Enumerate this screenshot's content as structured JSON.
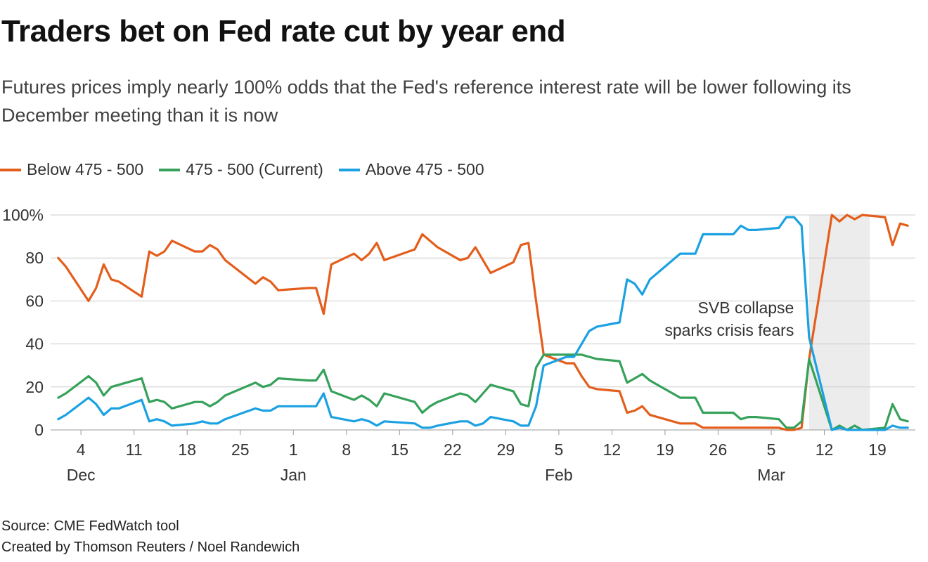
{
  "title": "Traders bet on Fed rate cut by year end",
  "subtitle": "Futures prices imply nearly 100% odds that the Fed's reference interest rate will be lower following its December meeting than it is now",
  "source": "Source: CME FedWatch tool",
  "credit": "Created by Thomson Reuters / Noel Randewich",
  "colors": {
    "below": "#e35e1c",
    "current": "#36a15a",
    "above": "#1ba1e2",
    "grid": "#cccccc",
    "shade": "#ececec"
  },
  "chart_data": {
    "type": "line",
    "ylim": [
      0,
      100
    ],
    "yticks": [
      {
        "value": 0,
        "label": "0"
      },
      {
        "value": 20,
        "label": "20"
      },
      {
        "value": 40,
        "label": "40"
      },
      {
        "value": 60,
        "label": "60"
      },
      {
        "value": 80,
        "label": "80"
      },
      {
        "value": 100,
        "label": "100%"
      }
    ],
    "xlim": [
      "2022-11-30",
      "2023-03-24"
    ],
    "xticks": [
      {
        "date": "2022-12-04",
        "label": "4",
        "sublabel": "Dec"
      },
      {
        "date": "2022-12-11",
        "label": "11",
        "sublabel": ""
      },
      {
        "date": "2022-12-18",
        "label": "18",
        "sublabel": ""
      },
      {
        "date": "2022-12-25",
        "label": "25",
        "sublabel": ""
      },
      {
        "date": "2023-01-01",
        "label": "1",
        "sublabel": "Jan"
      },
      {
        "date": "2023-01-08",
        "label": "8",
        "sublabel": ""
      },
      {
        "date": "2023-01-15",
        "label": "15",
        "sublabel": ""
      },
      {
        "date": "2023-01-22",
        "label": "22",
        "sublabel": ""
      },
      {
        "date": "2023-01-29",
        "label": "29",
        "sublabel": ""
      },
      {
        "date": "2023-02-05",
        "label": "5",
        "sublabel": "Feb"
      },
      {
        "date": "2023-02-12",
        "label": "12",
        "sublabel": ""
      },
      {
        "date": "2023-02-19",
        "label": "19",
        "sublabel": ""
      },
      {
        "date": "2023-02-26",
        "label": "26",
        "sublabel": ""
      },
      {
        "date": "2023-03-05",
        "label": "5",
        "sublabel": "Mar"
      },
      {
        "date": "2023-03-12",
        "label": "12",
        "sublabel": ""
      },
      {
        "date": "2023-03-19",
        "label": "19",
        "sublabel": ""
      }
    ],
    "shaded_region": [
      "2023-03-10",
      "2023-03-18"
    ],
    "annotation": {
      "date": "2023-03-08",
      "value": 55,
      "lines": [
        "SVB collapse",
        "sparks crisis fears"
      ]
    },
    "x": [
      "2022-12-01",
      "2022-12-02",
      "2022-12-05",
      "2022-12-06",
      "2022-12-07",
      "2022-12-08",
      "2022-12-09",
      "2022-12-12",
      "2022-12-13",
      "2022-12-14",
      "2022-12-15",
      "2022-12-16",
      "2022-12-19",
      "2022-12-20",
      "2022-12-21",
      "2022-12-22",
      "2022-12-23",
      "2022-12-27",
      "2022-12-28",
      "2022-12-29",
      "2022-12-30",
      "2023-01-03",
      "2023-01-04",
      "2023-01-05",
      "2023-01-06",
      "2023-01-09",
      "2023-01-10",
      "2023-01-11",
      "2023-01-12",
      "2023-01-13",
      "2023-01-17",
      "2023-01-18",
      "2023-01-19",
      "2023-01-20",
      "2023-01-23",
      "2023-01-24",
      "2023-01-25",
      "2023-01-26",
      "2023-01-27",
      "2023-01-30",
      "2023-01-31",
      "2023-02-01",
      "2023-02-02",
      "2023-02-03",
      "2023-02-06",
      "2023-02-07",
      "2023-02-08",
      "2023-02-09",
      "2023-02-10",
      "2023-02-13",
      "2023-02-14",
      "2023-02-15",
      "2023-02-16",
      "2023-02-17",
      "2023-02-21",
      "2023-02-22",
      "2023-02-23",
      "2023-02-24",
      "2023-02-27",
      "2023-02-28",
      "2023-03-01",
      "2023-03-02",
      "2023-03-03",
      "2023-03-06",
      "2023-03-07",
      "2023-03-08",
      "2023-03-09",
      "2023-03-10",
      "2023-03-13",
      "2023-03-14",
      "2023-03-15",
      "2023-03-16",
      "2023-03-17",
      "2023-03-20",
      "2023-03-21",
      "2023-03-22",
      "2023-03-23"
    ],
    "series": [
      {
        "name": "Below 475 - 500",
        "key": "below",
        "values": [
          80,
          76,
          60,
          66,
          77,
          70,
          69,
          62,
          83,
          81,
          83,
          88,
          83,
          83,
          86,
          84,
          79,
          68,
          71,
          69,
          65,
          66,
          66,
          54,
          77,
          82,
          79,
          82,
          87,
          79,
          84,
          91,
          88,
          85,
          79,
          80,
          85,
          79,
          73,
          78,
          86,
          87,
          60,
          35,
          31,
          31,
          25,
          20,
          19,
          18,
          8,
          9,
          11,
          7,
          3,
          3,
          3,
          1,
          1,
          1,
          1,
          1,
          1,
          1,
          0,
          0,
          1,
          33,
          100,
          97,
          100,
          98,
          100,
          99,
          86,
          96,
          95
        ],
        "_note": ""
      },
      {
        "name": "475 - 500 (Current)",
        "key": "current",
        "values": [
          15,
          17,
          25,
          22,
          16,
          20,
          21,
          24,
          13,
          14,
          13,
          10,
          13,
          13,
          11,
          13,
          16,
          22,
          20,
          21,
          24,
          23,
          23,
          28,
          18,
          14,
          16,
          14,
          11,
          17,
          13,
          8,
          11,
          13,
          17,
          16,
          13,
          17,
          21,
          18,
          12,
          11,
          29,
          35,
          35,
          35,
          35,
          34,
          33,
          32,
          22,
          24,
          26,
          23,
          15,
          15,
          15,
          8,
          8,
          8,
          5,
          6,
          6,
          5,
          1,
          1,
          4,
          33,
          0,
          2,
          0,
          2,
          0,
          1,
          12,
          5,
          4
        ]
      },
      {
        "name": "Above 475 - 500",
        "key": "above",
        "values": [
          5,
          7,
          15,
          12,
          7,
          10,
          10,
          14,
          4,
          5,
          4,
          2,
          3,
          4,
          3,
          3,
          5,
          10,
          9,
          9,
          11,
          11,
          11,
          17,
          6,
          4,
          5,
          4,
          2,
          4,
          3,
          1,
          1,
          2,
          4,
          4,
          2,
          3,
          6,
          4,
          2,
          2,
          11,
          30,
          34,
          34,
          40,
          46,
          48,
          50,
          70,
          68,
          63,
          70,
          82,
          82,
          82,
          91,
          91,
          91,
          95,
          93,
          93,
          94,
          99,
          99,
          95,
          43,
          0,
          1,
          0,
          0,
          0,
          0,
          2,
          1,
          1
        ]
      }
    ]
  }
}
